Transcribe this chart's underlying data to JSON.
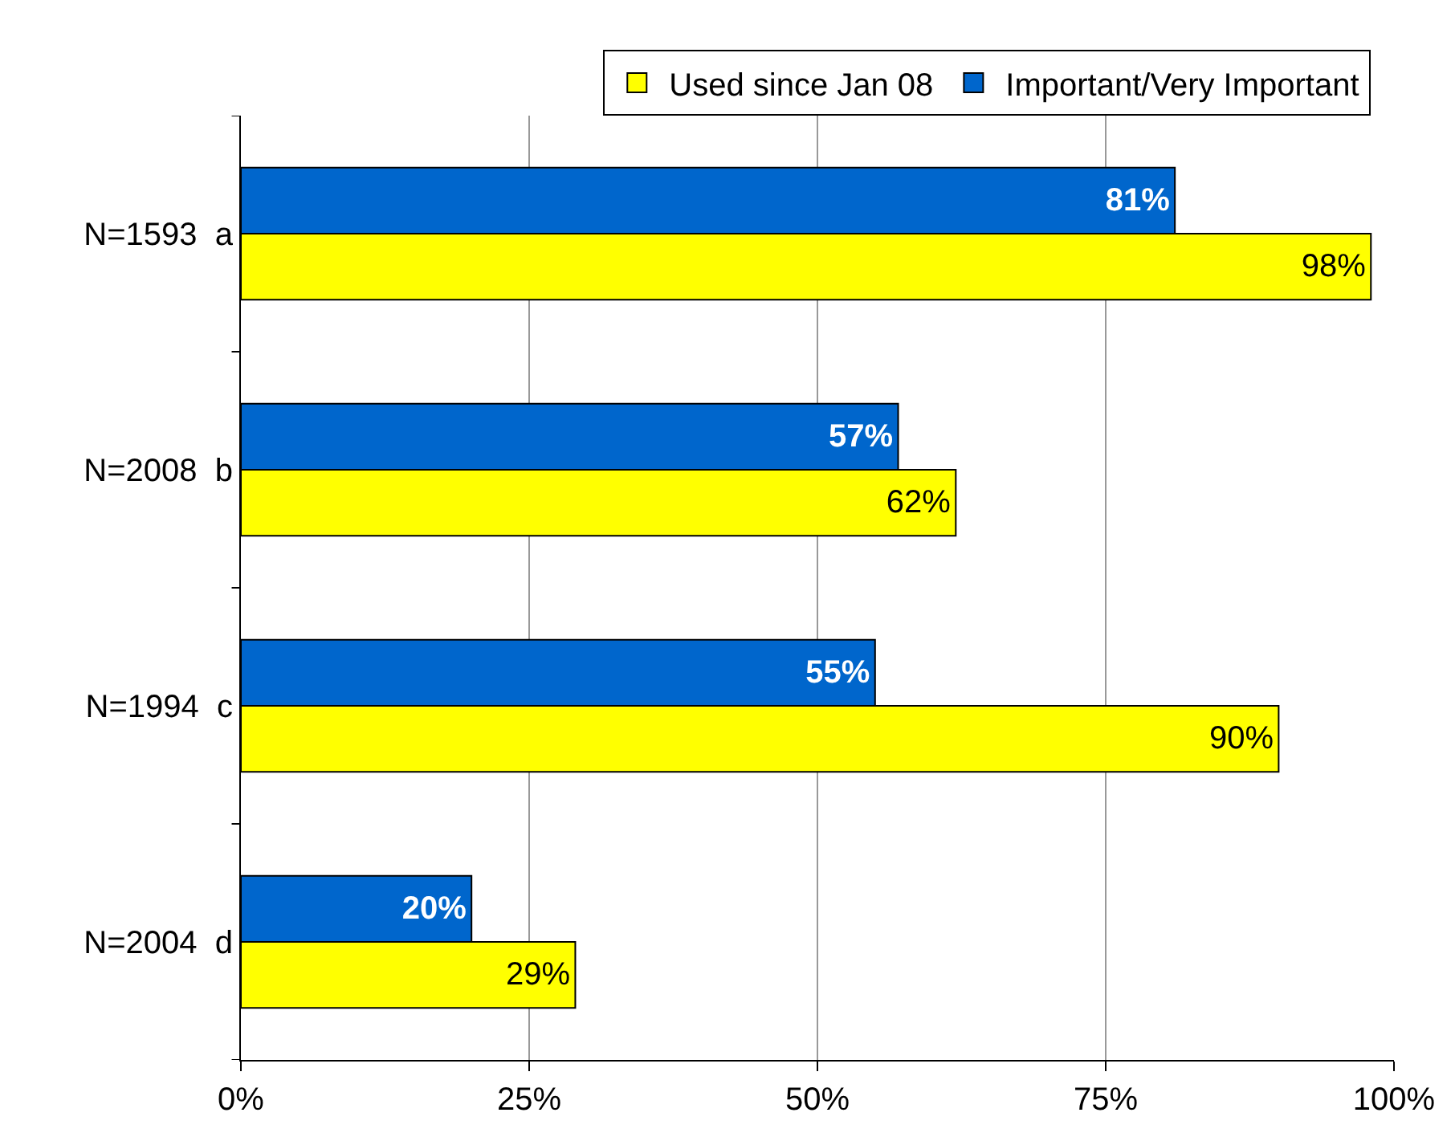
{
  "chart_data": {
    "type": "bar",
    "orientation": "horizontal",
    "categories": [
      "N=1593  a",
      "N=2008  b",
      "N=1994  c",
      "N=2004  d"
    ],
    "series": [
      {
        "name": "Important/Very Important",
        "color": "#0066cc",
        "values": [
          81,
          57,
          55,
          20
        ],
        "value_labels": [
          "81%",
          "57%",
          "55%",
          "20%"
        ]
      },
      {
        "name": "Used since Jan 08",
        "color": "#ffff00",
        "values": [
          98,
          62,
          90,
          29
        ],
        "value_labels": [
          "98%",
          "62%",
          "90%",
          "29%"
        ]
      }
    ],
    "xlim": [
      0,
      100
    ],
    "xticks": [
      {
        "value": 0,
        "label": "0%"
      },
      {
        "value": 25,
        "label": "25%"
      },
      {
        "value": 50,
        "label": "50%"
      },
      {
        "value": 75,
        "label": "75%"
      },
      {
        "value": 100,
        "label": "100%"
      }
    ],
    "grid": "x",
    "legend": "top"
  }
}
